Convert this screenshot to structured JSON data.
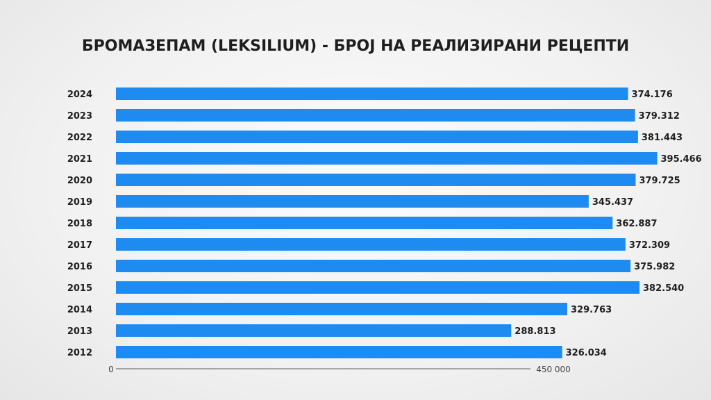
{
  "chart_data": {
    "type": "bar",
    "orientation": "horizontal",
    "title": "БРОМАЗЕПАМ (LEKSILIUM) - БРОЈ НА РЕАЛИЗИРАНИ РЕЦЕПТИ",
    "categories": [
      "2024",
      "2023",
      "2022",
      "2021",
      "2020",
      "2019",
      "2018",
      "2017",
      "2016",
      "2015",
      "2014",
      "2013",
      "2012"
    ],
    "values": [
      374176,
      379312,
      381443,
      395466,
      379725,
      345437,
      362887,
      372309,
      375982,
      382540,
      329763,
      288813,
      326034
    ],
    "value_labels": [
      "374.176",
      "379.312",
      "381.443",
      "395.466",
      "379.725",
      "345.437",
      "362.887",
      "372.309",
      "375.982",
      "382.540",
      "329.763",
      "288.813",
      "326.034"
    ],
    "xlim": [
      0,
      450000
    ],
    "x_min_label": "0",
    "x_max_label": "450 000",
    "grid": false,
    "legend": "none",
    "colors": {
      "bar": "#1e8bf0",
      "axis": "#5a5a5a",
      "text": "#1e1e1e"
    }
  }
}
